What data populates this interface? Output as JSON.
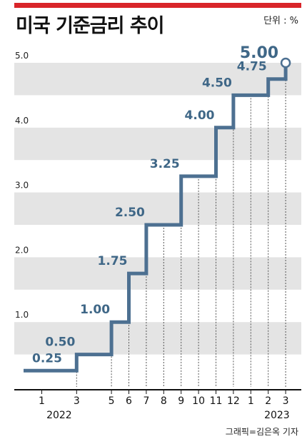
{
  "header": {
    "title": "미국 기준금리 추이",
    "unit": "단위 : %"
  },
  "footer": {
    "credit": "그래픽=김은옥 기자"
  },
  "chart_data": {
    "type": "line",
    "step": true,
    "title": "미국 기준금리 추이",
    "ylim": [
      0,
      5.0
    ],
    "yticks": [
      "5.0",
      "4.0",
      "3.0",
      "2.0",
      "1.0"
    ],
    "grid": "alternating horizontal bands, vertical dashed lines at rate changes",
    "line_color": "#4d7091",
    "x_ticks": [
      "1",
      "3",
      "5",
      "6",
      "7",
      "8",
      "9",
      "10",
      "11",
      "12",
      "1",
      "2",
      "3"
    ],
    "years": [
      "2022",
      "2023"
    ],
    "points": [
      {
        "x": "2022-01",
        "y": 0.25,
        "label": "0.25"
      },
      {
        "x": "2022-03",
        "y": 0.5,
        "label": "0.50"
      },
      {
        "x": "2022-05",
        "y": 1.0,
        "label": "1.00"
      },
      {
        "x": "2022-06",
        "y": 1.75,
        "label": "1.75"
      },
      {
        "x": "2022-07",
        "y": 2.5,
        "label": "2.50"
      },
      {
        "x": "2022-09",
        "y": 3.25,
        "label": "3.25"
      },
      {
        "x": "2022-11",
        "y": 4.0,
        "label": "4.00"
      },
      {
        "x": "2022-12",
        "y": 4.5,
        "label": "4.50"
      },
      {
        "x": "2023-02",
        "y": 4.75,
        "label": "4.75"
      },
      {
        "x": "2023-03",
        "y": 5.0,
        "label": "5.00"
      }
    ]
  }
}
